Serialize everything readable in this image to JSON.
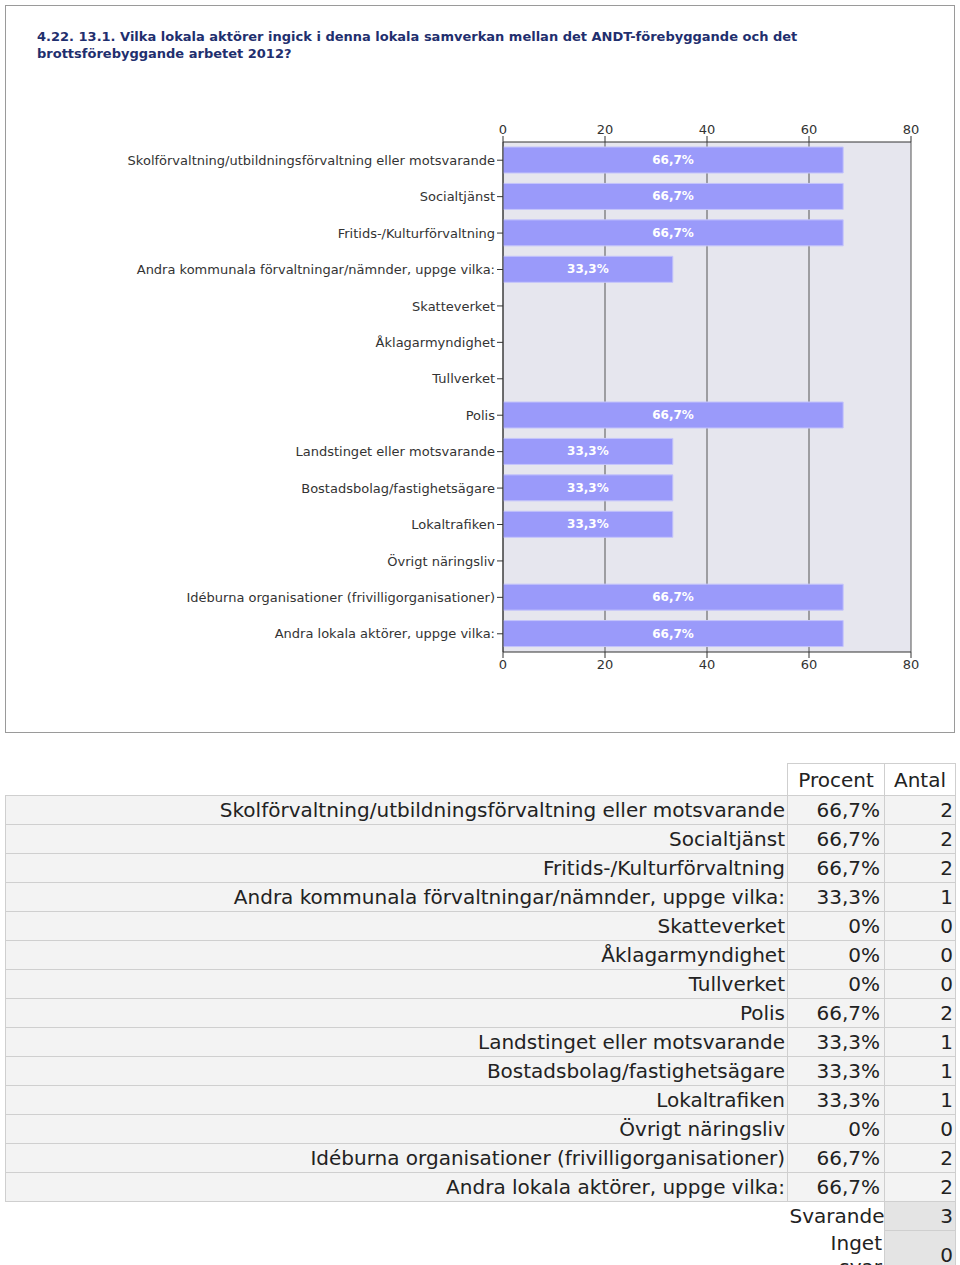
{
  "chart_data": {
    "type": "bar",
    "title": "4.22. 13.1. Vilka lokala aktörer ingick i denna lokala samverkan mellan det ANDT-förebyggande och det brottsförebyggande arbetet 2012?",
    "orientation": "horizontal",
    "categories": [
      "Skolförvaltning/utbildningsförvaltning eller motsvarande",
      "Socialtjänst",
      "Fritids-/Kulturförvaltning",
      "Andra kommunala förvaltningar/nämnder, uppge vilka:",
      "Skatteverket",
      "Åklagarmyndighet",
      "Tullverket",
      "Polis",
      "Landstinget eller motsvarande",
      "Bostadsbolag/fastighetsägare",
      "Lokaltrafiken",
      "Övrigt näringsliv",
      "Idéburna organisationer (frivilligorganisationer)",
      "Andra lokala aktörer, uppge vilka:"
    ],
    "values": [
      66.7,
      66.7,
      66.7,
      33.3,
      0,
      0,
      0,
      66.7,
      33.3,
      33.3,
      33.3,
      0,
      66.7,
      66.7
    ],
    "value_labels": [
      "66,7%",
      "66,7%",
      "66,7%",
      "33,3%",
      null,
      null,
      null,
      "66,7%",
      "33,3%",
      "33,3%",
      "33,3%",
      null,
      "66,7%",
      "66,7%"
    ],
    "data_labels": true,
    "color": "#9a9afa",
    "xlim": [
      0,
      80
    ],
    "xticks": [
      0,
      20,
      40,
      60,
      80
    ],
    "grid": true
  },
  "table": {
    "header": [
      "Procent",
      "Antal"
    ],
    "rows": [
      [
        "Skolförvaltning/utbildningsförvaltning eller motsvarande",
        "66,7%",
        2
      ],
      [
        "Socialtjänst",
        "66,7%",
        2
      ],
      [
        "Fritids-/Kulturförvaltning",
        "66,7%",
        2
      ],
      [
        "Andra kommunala förvaltningar/nämnder, uppge vilka:",
        "33,3%",
        1
      ],
      [
        "Skatteverket",
        "0%",
        0
      ],
      [
        "Åklagarmyndighet",
        "0%",
        0
      ],
      [
        "Tullverket",
        "0%",
        0
      ],
      [
        "Polis",
        "66,7%",
        2
      ],
      [
        "Landstinget eller motsvarande",
        "33,3%",
        1
      ],
      [
        "Bostadsbolag/fastighetsägare",
        "33,3%",
        1
      ],
      [
        "Lokaltrafiken",
        "33,3%",
        1
      ],
      [
        "Övrigt näringsliv",
        "0%",
        0
      ],
      [
        "Idéburna organisationer (frivilligorganisationer)",
        "66,7%",
        2
      ],
      [
        "Andra lokala aktörer, uppge vilka:",
        "66,7%",
        2
      ]
    ],
    "footer": [
      [
        "Svarande",
        3
      ],
      [
        "Inget svar",
        0
      ]
    ]
  }
}
